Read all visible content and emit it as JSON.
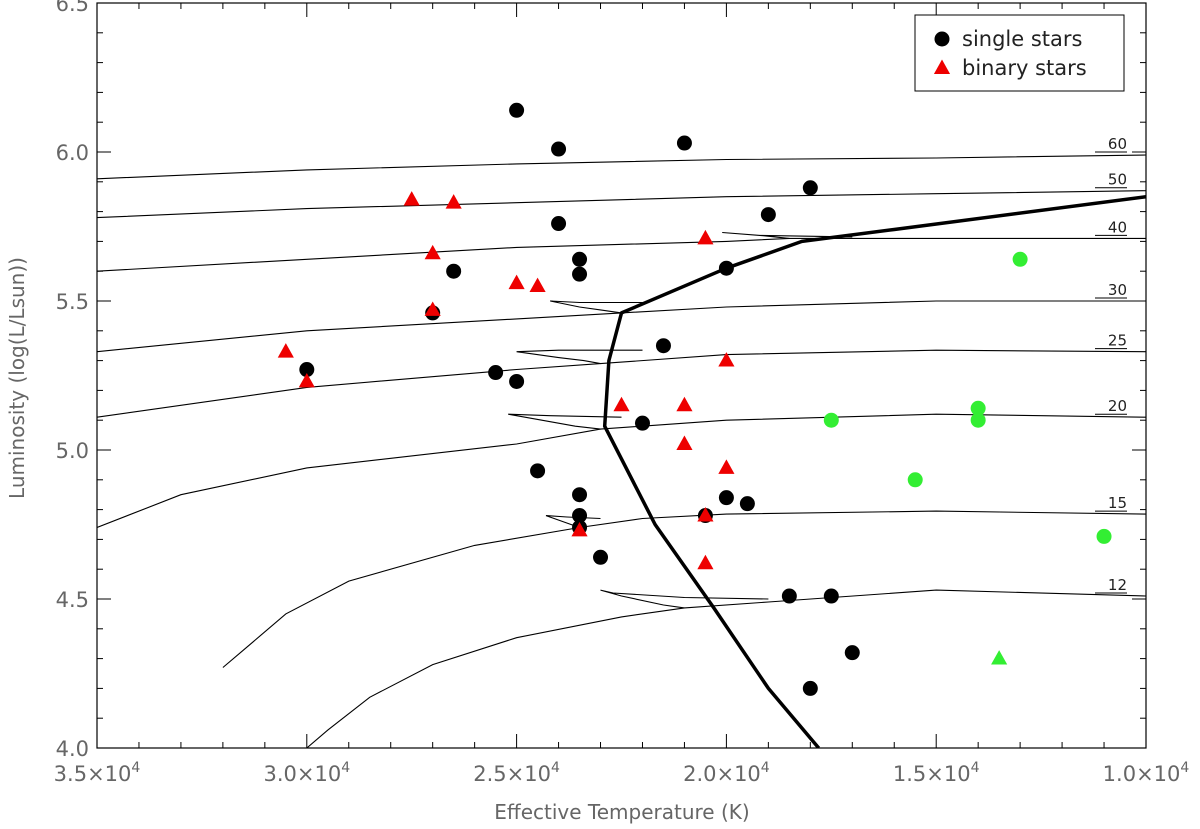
{
  "chart_data": {
    "type": "scatter",
    "title": "",
    "xlabel": "Effective Temperature (K)",
    "ylabel": "Luminosity (log(L/Lsun))",
    "xlim": [
      35000,
      10000
    ],
    "ylim": [
      4.0,
      6.5
    ],
    "x_reversed": true,
    "grid": false,
    "legend_position": "top-right",
    "x_ticks": [
      {
        "value": 35000,
        "mant": "3.5",
        "exp": "4"
      },
      {
        "value": 30000,
        "mant": "3.0",
        "exp": "4"
      },
      {
        "value": 25000,
        "mant": "2.5",
        "exp": "4"
      },
      {
        "value": 20000,
        "mant": "2.0",
        "exp": "4"
      },
      {
        "value": 15000,
        "mant": "1.5",
        "exp": "4"
      },
      {
        "value": 10000,
        "mant": "1.0",
        "exp": "4"
      }
    ],
    "times_sign": "×10",
    "y_ticks": [
      {
        "value": 4.0,
        "label": "4.0"
      },
      {
        "value": 4.5,
        "label": "4.5"
      },
      {
        "value": 5.0,
        "label": "5.0"
      },
      {
        "value": 5.5,
        "label": "5.5"
      },
      {
        "value": 6.0,
        "label": "6.0"
      },
      {
        "value": 6.5,
        "label": "6.5"
      }
    ],
    "legend": [
      {
        "label": "single stars",
        "marker": "circle",
        "color": "#000000"
      },
      {
        "label": "binary stars",
        "marker": "triangle",
        "color": "#ee0000"
      }
    ],
    "colors": {
      "single": "#000000",
      "binary": "#ee0000",
      "highlight": "#33ee33"
    },
    "tracks": [
      {
        "label": "60",
        "points": [
          [
            35000,
            5.91
          ],
          [
            30000,
            5.94
          ],
          [
            25000,
            5.96
          ],
          [
            20000,
            5.975
          ],
          [
            15000,
            5.98
          ],
          [
            10000,
            5.99
          ]
        ]
      },
      {
        "label": "50",
        "points": [
          [
            35000,
            5.78
          ],
          [
            30000,
            5.81
          ],
          [
            25000,
            5.83
          ],
          [
            20000,
            5.85
          ],
          [
            15000,
            5.86
          ],
          [
            10000,
            5.87
          ]
        ]
      },
      {
        "label": "40",
        "points": [
          [
            35000,
            5.6
          ],
          [
            30000,
            5.64
          ],
          [
            25000,
            5.68
          ],
          [
            20000,
            5.7
          ],
          [
            18500,
            5.71
          ],
          [
            10000,
            5.71
          ]
        ],
        "hook": [
          [
            18500,
            5.71
          ],
          [
            19200,
            5.72
          ],
          [
            20100,
            5.73
          ],
          [
            19200,
            5.72
          ],
          [
            17000,
            5.715
          ]
        ]
      },
      {
        "label": "30",
        "points": [
          [
            35000,
            5.33
          ],
          [
            30000,
            5.4
          ],
          [
            25000,
            5.44
          ],
          [
            22500,
            5.46
          ],
          [
            20000,
            5.48
          ],
          [
            15000,
            5.5
          ],
          [
            10000,
            5.5
          ]
        ],
        "hook": [
          [
            22500,
            5.46
          ],
          [
            23000,
            5.47
          ],
          [
            23500,
            5.48
          ],
          [
            24200,
            5.5
          ],
          [
            23500,
            5.495
          ],
          [
            22000,
            5.495
          ]
        ]
      },
      {
        "label": "25",
        "points": [
          [
            35000,
            5.11
          ],
          [
            30000,
            5.21
          ],
          [
            25000,
            5.27
          ],
          [
            23000,
            5.29
          ],
          [
            20000,
            5.32
          ],
          [
            15000,
            5.335
          ],
          [
            10000,
            5.33
          ]
        ],
        "hook": [
          [
            23000,
            5.29
          ],
          [
            23400,
            5.3
          ],
          [
            24000,
            5.31
          ],
          [
            25000,
            5.33
          ],
          [
            24000,
            5.335
          ],
          [
            22000,
            5.335
          ]
        ]
      },
      {
        "label": "20",
        "points": [
          [
            35000,
            4.74
          ],
          [
            33000,
            4.85
          ],
          [
            30000,
            4.94
          ],
          [
            25000,
            5.02
          ],
          [
            23000,
            5.07
          ],
          [
            20000,
            5.1
          ],
          [
            15000,
            5.12
          ],
          [
            10000,
            5.11
          ]
        ],
        "hook": [
          [
            23000,
            5.07
          ],
          [
            23600,
            5.08
          ],
          [
            24400,
            5.1
          ],
          [
            25200,
            5.12
          ],
          [
            24200,
            5.115
          ],
          [
            22500,
            5.11
          ]
        ]
      },
      {
        "label": "15",
        "points": [
          [
            32000,
            4.27
          ],
          [
            31500,
            4.33
          ],
          [
            30500,
            4.45
          ],
          [
            29000,
            4.56
          ],
          [
            26000,
            4.68
          ],
          [
            23500,
            4.74
          ],
          [
            22000,
            4.77
          ],
          [
            20000,
            4.785
          ],
          [
            15000,
            4.795
          ],
          [
            10000,
            4.785
          ]
        ],
        "hook": [
          [
            23500,
            4.74
          ],
          [
            24300,
            4.78
          ],
          [
            23800,
            4.775
          ],
          [
            23000,
            4.77
          ]
        ]
      },
      {
        "label": "12",
        "points": [
          [
            30000,
            4.0
          ],
          [
            29500,
            4.06
          ],
          [
            28500,
            4.17
          ],
          [
            27000,
            4.28
          ],
          [
            25000,
            4.37
          ],
          [
            22500,
            4.44
          ],
          [
            21000,
            4.47
          ],
          [
            19000,
            4.49
          ],
          [
            15000,
            4.53
          ],
          [
            10000,
            4.51
          ]
        ],
        "hook": [
          [
            21000,
            4.47
          ],
          [
            21500,
            4.48
          ],
          [
            22500,
            4.51
          ],
          [
            23000,
            4.53
          ],
          [
            22700,
            4.52
          ],
          [
            21000,
            4.505
          ],
          [
            19000,
            4.5
          ]
        ]
      }
    ],
    "boundary": [
      [
        17800,
        4.0
      ],
      [
        19000,
        4.2
      ],
      [
        20300,
        4.47
      ],
      [
        21700,
        4.75
      ],
      [
        22900,
        5.08
      ],
      [
        22800,
        5.3
      ],
      [
        22500,
        5.46
      ],
      [
        20000,
        5.61
      ],
      [
        18200,
        5.7
      ],
      [
        16000,
        5.74
      ],
      [
        10000,
        5.85
      ]
    ],
    "single_stars": [
      [
        25000,
        6.14
      ],
      [
        24000,
        6.01
      ],
      [
        21000,
        6.03
      ],
      [
        18000,
        5.88
      ],
      [
        19000,
        5.79
      ],
      [
        24000,
        5.76
      ],
      [
        23500,
        5.64
      ],
      [
        23500,
        5.59
      ],
      [
        20000,
        5.61
      ],
      [
        26500,
        5.6
      ],
      [
        27000,
        5.46
      ],
      [
        21500,
        5.35
      ],
      [
        30000,
        5.27
      ],
      [
        25500,
        5.26
      ],
      [
        25000,
        5.23
      ],
      [
        22000,
        5.09
      ],
      [
        24500,
        4.93
      ],
      [
        23500,
        4.85
      ],
      [
        20000,
        4.84
      ],
      [
        19500,
        4.82
      ],
      [
        23500,
        4.78
      ],
      [
        20500,
        4.78
      ],
      [
        23500,
        4.74
      ],
      [
        23000,
        4.64
      ],
      [
        18500,
        4.51
      ],
      [
        17500,
        4.51
      ],
      [
        17000,
        4.32
      ],
      [
        18000,
        4.2
      ]
    ],
    "binary_stars": [
      [
        27500,
        5.84
      ],
      [
        26500,
        5.83
      ],
      [
        20500,
        5.71
      ],
      [
        27000,
        5.66
      ],
      [
        25000,
        5.56
      ],
      [
        24500,
        5.55
      ],
      [
        27000,
        5.47
      ],
      [
        30500,
        5.33
      ],
      [
        30000,
        5.23
      ],
      [
        20000,
        5.3
      ],
      [
        22500,
        5.15
      ],
      [
        21000,
        5.15
      ],
      [
        21000,
        5.02
      ],
      [
        20000,
        4.94
      ],
      [
        20500,
        4.78
      ],
      [
        23500,
        4.73
      ],
      [
        20500,
        4.62
      ]
    ],
    "highlight_circles": [
      [
        13000,
        5.64
      ],
      [
        17500,
        5.1
      ],
      [
        14000,
        5.14
      ],
      [
        14000,
        5.1
      ],
      [
        15500,
        4.9
      ],
      [
        11000,
        4.71
      ]
    ],
    "highlight_triangles": [
      [
        13500,
        4.3
      ]
    ]
  }
}
